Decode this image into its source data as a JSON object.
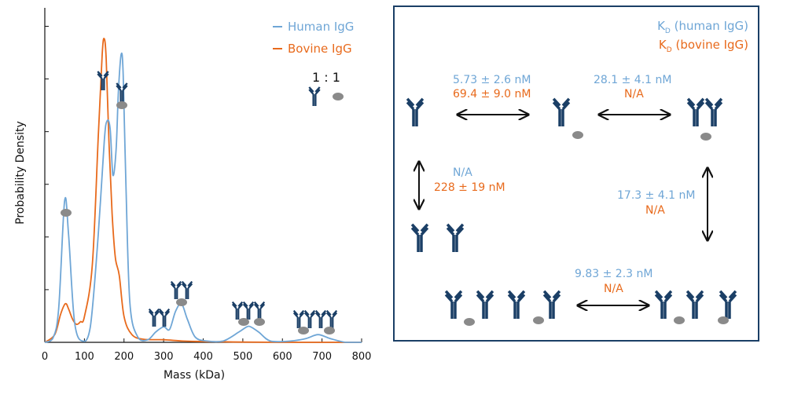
{
  "colors": {
    "human": "#6fa6d6",
    "bovine": "#e86a1c",
    "antibody": "#1b3f66",
    "antigen": "#8a8a8a"
  },
  "chart_data": {
    "type": "line",
    "xlabel": "Mass (kDa)",
    "ylabel": "Probability Density",
    "xlim": [
      0,
      800
    ],
    "xticks": [
      "0",
      "100",
      "200",
      "300",
      "400",
      "500",
      "600",
      "700",
      "800"
    ],
    "ratio_label": "1 : 1",
    "legend_position": "top-right",
    "series": [
      {
        "name": "Human IgG",
        "color": "#6fa6d6",
        "x": [
          0,
          20,
          35,
          50,
          60,
          75,
          95,
          115,
          135,
          150,
          157,
          165,
          172,
          180,
          186,
          193,
          198,
          205,
          215,
          235,
          260,
          280,
          300,
          315,
          330,
          345,
          360,
          380,
          410,
          450,
          490,
          510,
          520,
          540,
          570,
          620,
          660,
          690,
          720,
          760,
          800
        ],
        "y": [
          0.0,
          0.015,
          0.13,
          0.55,
          0.42,
          0.08,
          0.005,
          0.06,
          0.42,
          0.78,
          0.86,
          0.83,
          0.65,
          0.75,
          0.98,
          1.12,
          1.04,
          0.6,
          0.15,
          0.02,
          0.01,
          0.04,
          0.06,
          0.05,
          0.12,
          0.15,
          0.09,
          0.02,
          0.005,
          0.005,
          0.04,
          0.06,
          0.06,
          0.04,
          0.005,
          0.005,
          0.015,
          0.03,
          0.015,
          0.0,
          0.0
        ]
      },
      {
        "name": "Bovine IgG",
        "color": "#e86a1c",
        "x": [
          0,
          25,
          40,
          52,
          60,
          70,
          80,
          90,
          100,
          120,
          135,
          145,
          150,
          155,
          162,
          170,
          178,
          188,
          200,
          220,
          250,
          300,
          350,
          400,
          450,
          500,
          600,
          700,
          800
        ],
        "y": [
          0.0,
          0.03,
          0.11,
          0.15,
          0.13,
          0.09,
          0.07,
          0.08,
          0.1,
          0.3,
          0.8,
          1.12,
          1.18,
          1.1,
          0.78,
          0.5,
          0.33,
          0.26,
          0.1,
          0.03,
          0.012,
          0.01,
          0.005,
          0.003,
          0.002,
          0.001,
          0.0,
          0.0,
          0.0
        ]
      }
    ]
  },
  "kd_panel": {
    "legend_human": "K",
    "legend_human_sub": "D",
    "legend_human_rest": " (human IgG)",
    "legend_bovine": "K",
    "legend_bovine_sub": "D",
    "legend_bovine_rest": " (bovine IgG)",
    "arrow1_human": "5.73 ± 2.6 nM",
    "arrow1_bovine": "69.4 ± 9.0 nM",
    "arrow2_human": "28.1 ± 4.1 nM",
    "arrow2_bovine": "N/A",
    "arrow3_human": "N/A",
    "arrow3_bovine": "228 ± 19 nM",
    "arrow4_human": "17.3 ± 4.1 nM",
    "arrow4_bovine": "N/A",
    "arrow5_human": "9.83 ± 2.3 nM",
    "arrow5_bovine": "N/A"
  }
}
